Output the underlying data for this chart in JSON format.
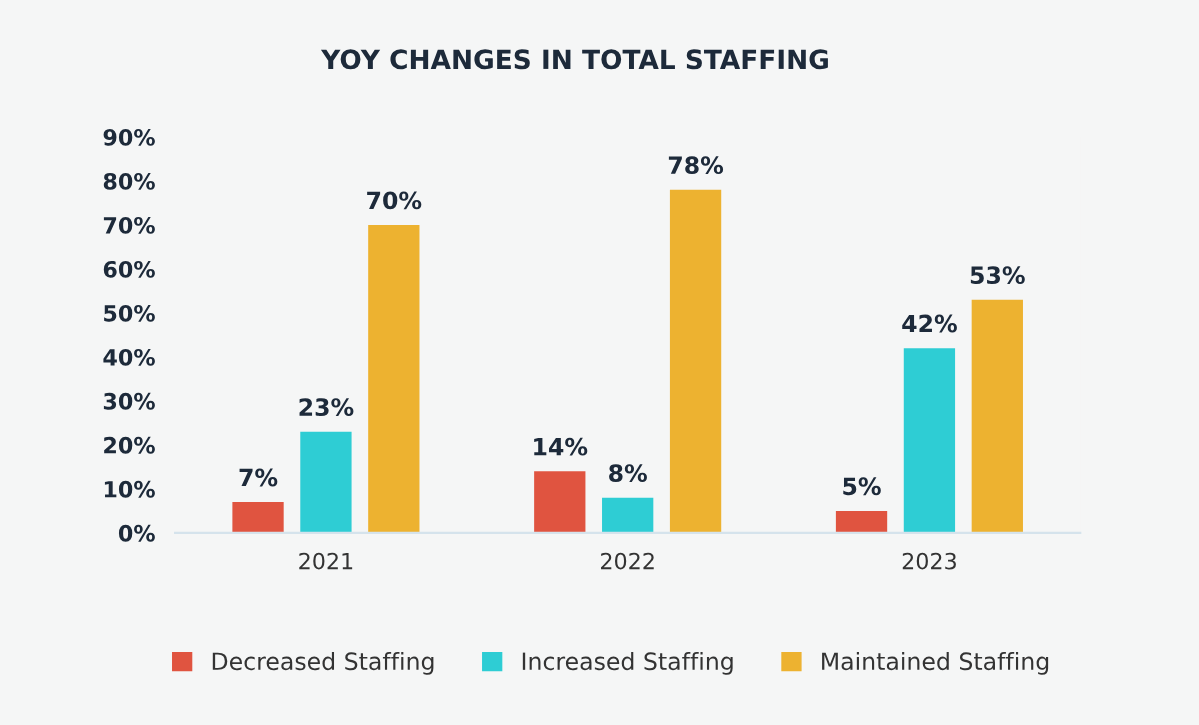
{
  "chart_data": {
    "type": "bar",
    "title": "YOY CHANGES IN TOTAL STAFFING",
    "categories": [
      "2021",
      "2022",
      "2023"
    ],
    "series": [
      {
        "name": "Decreased Staffing",
        "color": "#e05440",
        "values": [
          7,
          14,
          5
        ],
        "value_labels": [
          "7%",
          "14%",
          "5%"
        ]
      },
      {
        "name": "Increased Staffing",
        "color": "#2ecdd4",
        "values": [
          23,
          8,
          42
        ],
        "value_labels": [
          "23%",
          "8%",
          "42%"
        ]
      },
      {
        "name": "Maintained Staffing",
        "color": "#edb230",
        "values": [
          70,
          78,
          53
        ],
        "value_labels": [
          "70%",
          "78%",
          "53%"
        ]
      }
    ],
    "ylim": [
      0,
      90
    ],
    "yticks": [
      {
        "value": 0,
        "label": "0%"
      },
      {
        "value": 10,
        "label": "10%"
      },
      {
        "value": 20,
        "label": "20%"
      },
      {
        "value": 30,
        "label": "30%"
      },
      {
        "value": 40,
        "label": "40%"
      },
      {
        "value": 50,
        "label": "50%"
      },
      {
        "value": 60,
        "label": "60%"
      },
      {
        "value": 70,
        "label": "70%"
      },
      {
        "value": 80,
        "label": "80%"
      },
      {
        "value": 90,
        "label": "90%"
      }
    ],
    "grid": false,
    "legend": "bottom"
  }
}
